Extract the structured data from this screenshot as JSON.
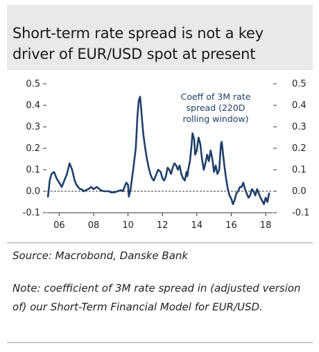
{
  "title_lines": [
    "Short-term rate spread is not a key",
    "driver of EUR/USD spot at present"
  ],
  "source": "Source: Macrobond, Danske Bank",
  "note": "Note: coefficient of 3M rate spread in (adjusted version of) our Short-Term Financial Model for EUR/USD.",
  "colors": {
    "line": "#1f3f6a",
    "title_bg": "#e9e9e9",
    "zero_line": "#333333"
  },
  "chart_data": {
    "type": "line",
    "title": "",
    "xlabel": "",
    "ylabel": "",
    "xlim": [
      2005.3,
      2018.4
    ],
    "ylim": [
      -0.1,
      0.5
    ],
    "x_ticks": [
      2006,
      2008,
      2010,
      2012,
      2014,
      2016,
      2018
    ],
    "x_tick_labels": [
      "06",
      "08",
      "10",
      "12",
      "14",
      "16",
      "18"
    ],
    "y_ticks": [
      -0.1,
      0.0,
      0.1,
      0.2,
      0.3,
      0.4,
      0.5
    ],
    "y_tick_labels": [
      "-0.1",
      "0.0",
      "0.1",
      "0.2",
      "0.3",
      "0.4",
      "0.5"
    ],
    "y_axis_both_sides": true,
    "zero_line": "dashed",
    "grid": false,
    "annotation": [
      "Coeff of 3M rate",
      "spread (220D",
      "rolling window)"
    ],
    "series": [
      {
        "x": [
          2005.35,
          2005.45,
          2005.55,
          2005.7,
          2005.85,
          2006.0,
          2006.15,
          2006.3,
          2006.45,
          2006.6,
          2006.75,
          2006.9,
          2007.0,
          2007.1,
          2007.2,
          2007.3,
          2007.4,
          2007.55,
          2007.7,
          2007.85,
          2008.0,
          2008.2,
          2008.4,
          2008.6,
          2008.8,
          2008.9,
          2009.0,
          2009.2,
          2009.4,
          2009.6,
          2009.7,
          2009.8,
          2009.9,
          2010.0,
          2010.05,
          2010.15,
          2010.3,
          2010.45,
          2010.55,
          2010.62,
          2010.7,
          2010.75,
          2010.82,
          2010.9,
          2011.0,
          2011.1,
          2011.2,
          2011.3,
          2011.4,
          2011.5,
          2011.6,
          2011.75,
          2011.9,
          2012.0,
          2012.1,
          2012.2,
          2012.3,
          2012.4,
          2012.5,
          2012.6,
          2012.7,
          2012.8,
          2012.9,
          2013.0,
          2013.1,
          2013.2,
          2013.3,
          2013.4,
          2013.45,
          2013.5,
          2013.6,
          2013.7,
          2013.75,
          2013.85,
          2013.9,
          2014.0,
          2014.1,
          2014.2,
          2014.3,
          2014.4,
          2014.5,
          2014.6,
          2014.7,
          2014.8,
          2014.9,
          2015.0,
          2015.1,
          2015.2,
          2015.3,
          2015.4,
          2015.45,
          2015.5,
          2015.6,
          2015.7,
          2015.8,
          2015.9,
          2016.0,
          2016.1,
          2016.2,
          2016.3,
          2016.4,
          2016.5,
          2016.6,
          2016.7,
          2016.8,
          2016.9,
          2017.0,
          2017.1,
          2017.2,
          2017.3,
          2017.4,
          2017.5,
          2017.6,
          2017.7,
          2017.8,
          2017.9,
          2018.0,
          2018.1,
          2018.2
        ],
        "values": [
          -0.025,
          0.05,
          0.08,
          0.09,
          0.06,
          0.04,
          0.02,
          0.05,
          0.08,
          0.13,
          0.1,
          0.05,
          0.03,
          0.02,
          0.01,
          0.01,
          0.0,
          0.005,
          0.01,
          0.02,
          0.01,
          0.02,
          0.005,
          0.0,
          0.0,
          0.0,
          -0.005,
          -0.005,
          0.0,
          0.005,
          0.0,
          0.02,
          0.04,
          0.03,
          -0.025,
          0.01,
          0.1,
          0.2,
          0.35,
          0.42,
          0.44,
          0.4,
          0.33,
          0.26,
          0.2,
          0.15,
          0.11,
          0.08,
          0.06,
          0.05,
          0.07,
          0.1,
          0.09,
          0.06,
          0.05,
          0.07,
          0.11,
          0.1,
          0.08,
          0.11,
          0.13,
          0.12,
          0.1,
          0.12,
          0.08,
          0.06,
          0.05,
          0.09,
          0.07,
          0.1,
          0.14,
          0.22,
          0.27,
          0.24,
          0.17,
          0.19,
          0.25,
          0.22,
          0.15,
          0.1,
          0.13,
          0.17,
          0.14,
          0.19,
          0.15,
          0.09,
          0.12,
          0.08,
          0.1,
          0.22,
          0.23,
          0.19,
          0.12,
          0.06,
          0.01,
          -0.02,
          -0.035,
          -0.06,
          -0.04,
          -0.01,
          0.0,
          0.02,
          0.02,
          0.04,
          0.01,
          -0.01,
          -0.03,
          -0.02,
          0.01,
          0.0,
          -0.02,
          0.01,
          -0.01,
          -0.03,
          -0.045,
          -0.06,
          -0.03,
          -0.05,
          -0.01
        ]
      }
    ]
  }
}
